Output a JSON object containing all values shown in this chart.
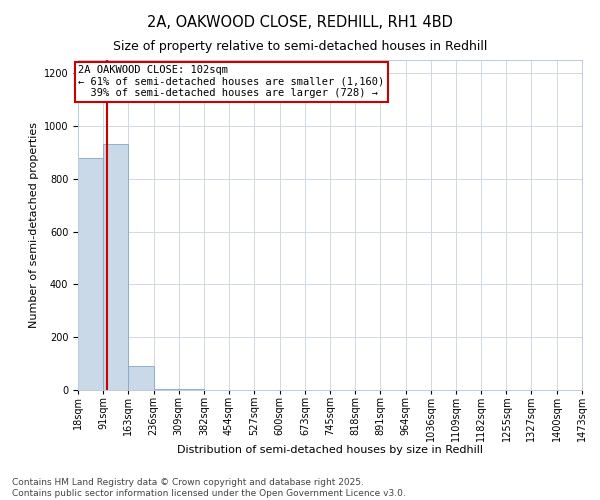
{
  "title_line1": "2A, OAKWOOD CLOSE, REDHILL, RH1 4BD",
  "title_line2": "Size of property relative to semi-detached houses in Redhill",
  "xlabel": "Distribution of semi-detached houses by size in Redhill",
  "ylabel": "Number of semi-detached properties",
  "bar_edges": [
    18,
    91,
    163,
    236,
    309,
    382,
    454,
    527,
    600,
    673,
    745,
    818,
    891,
    964,
    1036,
    1109,
    1182,
    1255,
    1327,
    1400,
    1473
  ],
  "bar_heights": [
    880,
    930,
    90,
    5,
    2,
    1,
    1,
    1,
    1,
    0,
    0,
    0,
    0,
    0,
    0,
    0,
    0,
    0,
    0,
    0
  ],
  "bar_color": "#c9d9e8",
  "bar_edgecolor": "#85a8c5",
  "property_size": 102,
  "property_label": "2A OAKWOOD CLOSE: 102sqm",
  "pct_smaller": 61,
  "count_smaller": 1160,
  "pct_larger": 39,
  "count_larger": 728,
  "annotation_box_color": "#cc0000",
  "vline_color": "#cc0000",
  "ylim": [
    0,
    1250
  ],
  "yticks": [
    0,
    200,
    400,
    600,
    800,
    1000,
    1200
  ],
  "footer_line1": "Contains HM Land Registry data © Crown copyright and database right 2025.",
  "footer_line2": "Contains public sector information licensed under the Open Government Licence v3.0.",
  "background_color": "#ffffff",
  "grid_color": "#d0d8e4",
  "title_fontsize": 10.5,
  "subtitle_fontsize": 9,
  "axis_label_fontsize": 8,
  "tick_fontsize": 7,
  "footer_fontsize": 6.5,
  "annot_fontsize": 7.5
}
